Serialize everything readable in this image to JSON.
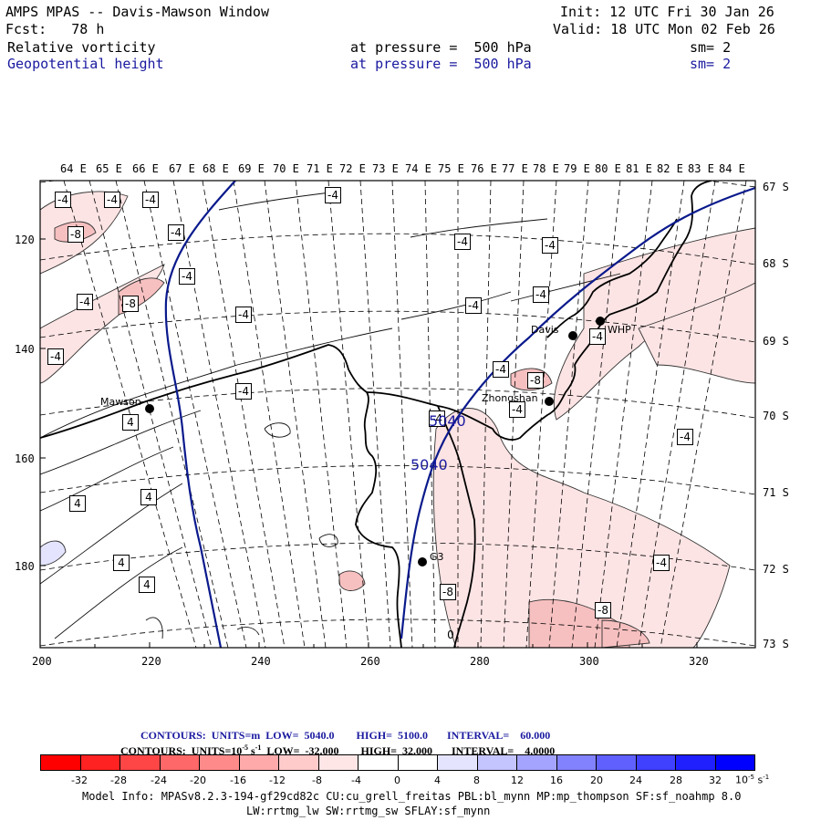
{
  "header": {
    "title": "AMPS MPAS -- Davis-Mawson Window",
    "init": "Init: 12 UTC Fri 30 Jan 26",
    "fcst": "Fcst:   78 h",
    "valid": "Valid: 18 UTC Mon 02 Feb 26",
    "field1": {
      "name": "Relative vorticity",
      "pressure": "at pressure =  500 hPa",
      "sm": "sm= 2"
    },
    "field2": {
      "name": "Geopotential height",
      "pressure": "at pressure =  500 hPa",
      "sm": "sm= 2"
    }
  },
  "map": {
    "lon_labels": [
      "64 E",
      "65 E",
      "66 E",
      "67 E",
      "68 E",
      "69 E",
      "70 E",
      "71 E",
      "72 E",
      "73 E",
      "74 E",
      "75 E",
      "76 E",
      "77 E",
      "78 E",
      "79 E",
      "80 E",
      "81 E",
      "82 E",
      "83 E",
      "84 E"
    ],
    "lat_labels": [
      "67 S",
      "68 S",
      "69 S",
      "70 S",
      "71 S",
      "72 S",
      "73 S"
    ],
    "x_ticks": [
      "200",
      "220",
      "240",
      "260",
      "280",
      "300",
      "320"
    ],
    "y_ticks": [
      "120",
      "140",
      "160",
      "180"
    ],
    "stations": [
      {
        "name": "Mawson"
      },
      {
        "name": "Davis"
      },
      {
        "name": "WHP"
      },
      {
        "name": "Zhongshan"
      },
      {
        "name": "G3"
      }
    ],
    "contour_labels": [
      "-4",
      "-4",
      "-4",
      "-4",
      "-8",
      "-4",
      "-4",
      "-4",
      "-4",
      "-4",
      "-4",
      "-4",
      "-8",
      "-4",
      "-4",
      "-4",
      "-4",
      "-4",
      "-8",
      "-4",
      "-4",
      "-4",
      "-4",
      "4",
      "4",
      "4",
      "4",
      "4",
      "-4",
      "-8",
      "-8",
      "0"
    ],
    "height_labels": [
      "5040",
      "5040"
    ],
    "colors": {
      "height_contour": "#0a1a8c",
      "coast": "#000000",
      "pos_shade": "#fde0e0",
      "strong_shade": "#f8c4c4"
    }
  },
  "footer": {
    "contours1": "CONTOURS:  UNITS=m  LOW=  5040.0        HIGH=  5100.0       INTERVAL=    60.000",
    "contours2": "CONTOURS:  UNITS=10",
    "contours2_exp": "-5",
    "contours2_rest": " s",
    "contours2_exp2": "-1",
    "contours2_tail": "  LOW=  -32.000        HIGH=  32.000       INTERVAL=    4.0000",
    "colorbar": {
      "ticks": [
        "-32",
        "-28",
        "-24",
        "-20",
        "-16",
        "-12",
        "-8",
        "-4",
        "0",
        "4",
        "8",
        "12",
        "16",
        "20",
        "24",
        "28",
        "32"
      ],
      "colors": [
        "#ff0000",
        "#ff2020",
        "#ff4444",
        "#ff6666",
        "#ff8888",
        "#ffaaaa",
        "#ffcccc",
        "#ffe8e8",
        "#ffffff",
        "#ffffff",
        "#e4e4ff",
        "#c6c6ff",
        "#a8a8ff",
        "#8888ff",
        "#6666ff",
        "#4444ff",
        "#1a1aff",
        "#0000ff"
      ],
      "unit": "10",
      "unit_exp": "-5",
      "unit_s": " s",
      "unit_exp2": "-1"
    },
    "model_info": "Model Info: MPASv8.2.3-194-gf29cd82c CU:cu_grell_freitas PBL:bl_mynn MP:mp_thompson SF:sf_noahmp 8.0",
    "model_info2": "LW:rrtmg_lw SW:rrtmg_sw SFLAY:sf_mynn"
  }
}
